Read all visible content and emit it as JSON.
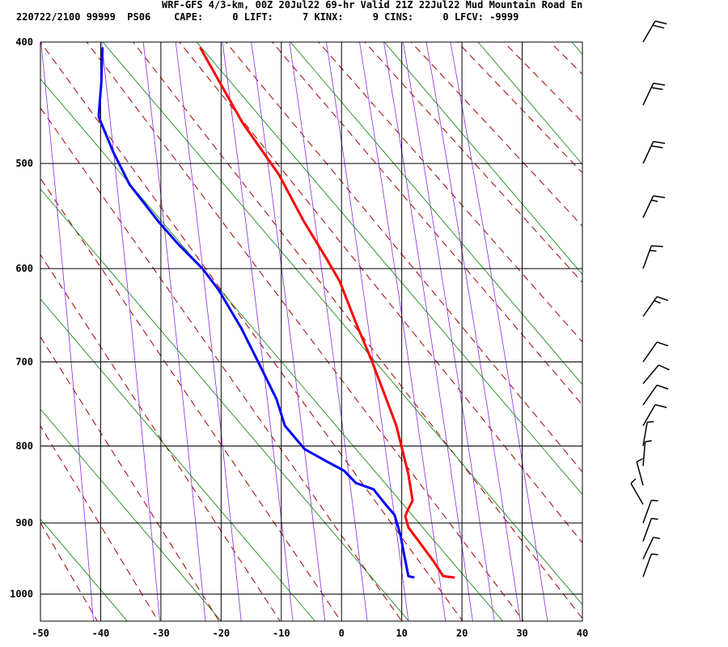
{
  "chart_data": {
    "type": "sounding",
    "title": "WRF-GFS 4/3-km, 00Z 20Jul22 69-hr Valid 21Z 22Jul22 Mud Mountain Road En",
    "subtitle": "220722/2100 99999  PS06    CAPE:     0 LIFT:     7 KINX:     9 CINS:     0 LFCV: -9999",
    "xlim": [
      -50,
      40
    ],
    "xticks": [
      -50,
      -40,
      -30,
      -20,
      -10,
      0,
      10,
      20,
      30,
      40
    ],
    "ylim": [
      400,
      1040
    ],
    "yticks": [
      400,
      500,
      600,
      700,
      800,
      900,
      1000
    ],
    "grid": true,
    "series": [
      {
        "color": "#ff0000",
        "temperature": [
          -23.5,
          -16.4,
          -10.4,
          -6.3,
          -2.3,
          -0.3,
          2.4,
          5.1,
          9.1,
          10.0,
          11.1,
          11.8,
          10.9,
          10.6,
          11.1,
          13.1,
          15.2,
          16.9,
          18.8
        ],
        "pressure": [
          404,
          465,
          510,
          553,
          592,
          613,
          657,
          700,
          775,
          802,
          836,
          870,
          884,
          891,
          906,
          928,
          952,
          974,
          976
        ]
      },
      {
        "color": "#0000ff",
        "temperature": [
          -39.7,
          -39.9,
          -40.3,
          -40.3,
          -37.9,
          -35.2,
          -30.5,
          -27.2,
          -23.1,
          -20.4,
          -16.7,
          -13.7,
          -10.8,
          -9.4,
          -6.1,
          -2.3,
          0.4,
          2.4,
          5.3,
          7.1,
          8.8,
          9.8,
          10.5,
          11.1,
          12.1
        ],
        "pressure": [
          404,
          432,
          457,
          460,
          490,
          519,
          553,
          575,
          600,
          622,
          662,
          702,
          743,
          775,
          804,
          820,
          831,
          847,
          855,
          873,
          889,
          917,
          948,
          974,
          976
        ]
      }
    ],
    "winds": {
      "pressure": [
        400,
        450,
        500,
        550,
        600,
        650,
        700,
        725,
        750,
        775,
        800,
        825,
        850,
        875,
        900,
        925,
        950,
        975
      ],
      "direction": [
        30,
        25,
        25,
        25,
        20,
        35,
        35,
        40,
        35,
        30,
        10,
        5,
        345,
        330,
        20,
        20,
        25,
        20
      ],
      "speed": [
        20,
        20,
        20,
        15,
        15,
        15,
        10,
        10,
        10,
        10,
        5,
        5,
        5,
        5,
        5,
        5,
        5,
        5
      ]
    }
  }
}
